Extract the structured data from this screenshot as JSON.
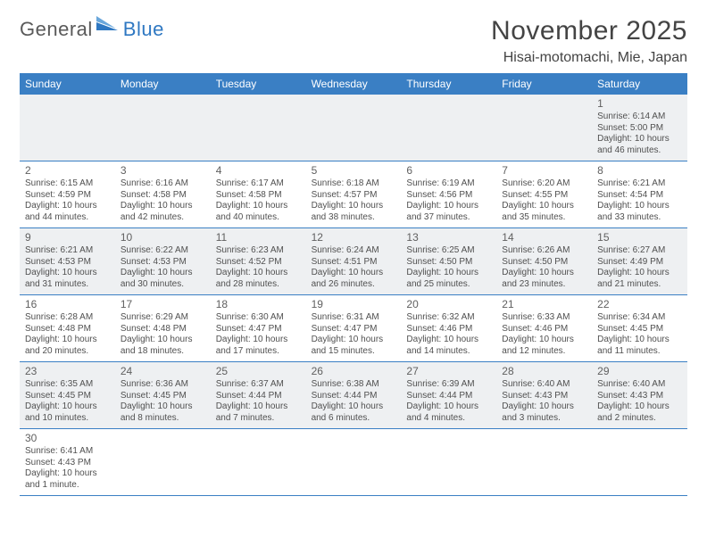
{
  "logo": {
    "text1": "General",
    "text2": "Blue"
  },
  "title": "November 2025",
  "location": "Hisai-motomachi, Mie, Japan",
  "colors": {
    "header_bg": "#3a7fc4",
    "alt_row_bg": "#eef0f2",
    "border": "#3a7fc4",
    "logo_gray": "#5a5a5a",
    "logo_blue": "#2f78c2"
  },
  "weekdays": [
    "Sunday",
    "Monday",
    "Tuesday",
    "Wednesday",
    "Thursday",
    "Friday",
    "Saturday"
  ],
  "weeks": [
    {
      "alt": true,
      "days": [
        null,
        null,
        null,
        null,
        null,
        null,
        {
          "n": "1",
          "sr": "Sunrise: 6:14 AM",
          "ss": "Sunset: 5:00 PM",
          "d1": "Daylight: 10 hours",
          "d2": "and 46 minutes."
        }
      ]
    },
    {
      "alt": false,
      "days": [
        {
          "n": "2",
          "sr": "Sunrise: 6:15 AM",
          "ss": "Sunset: 4:59 PM",
          "d1": "Daylight: 10 hours",
          "d2": "and 44 minutes."
        },
        {
          "n": "3",
          "sr": "Sunrise: 6:16 AM",
          "ss": "Sunset: 4:58 PM",
          "d1": "Daylight: 10 hours",
          "d2": "and 42 minutes."
        },
        {
          "n": "4",
          "sr": "Sunrise: 6:17 AM",
          "ss": "Sunset: 4:58 PM",
          "d1": "Daylight: 10 hours",
          "d2": "and 40 minutes."
        },
        {
          "n": "5",
          "sr": "Sunrise: 6:18 AM",
          "ss": "Sunset: 4:57 PM",
          "d1": "Daylight: 10 hours",
          "d2": "and 38 minutes."
        },
        {
          "n": "6",
          "sr": "Sunrise: 6:19 AM",
          "ss": "Sunset: 4:56 PM",
          "d1": "Daylight: 10 hours",
          "d2": "and 37 minutes."
        },
        {
          "n": "7",
          "sr": "Sunrise: 6:20 AM",
          "ss": "Sunset: 4:55 PM",
          "d1": "Daylight: 10 hours",
          "d2": "and 35 minutes."
        },
        {
          "n": "8",
          "sr": "Sunrise: 6:21 AM",
          "ss": "Sunset: 4:54 PM",
          "d1": "Daylight: 10 hours",
          "d2": "and 33 minutes."
        }
      ]
    },
    {
      "alt": true,
      "days": [
        {
          "n": "9",
          "sr": "Sunrise: 6:21 AM",
          "ss": "Sunset: 4:53 PM",
          "d1": "Daylight: 10 hours",
          "d2": "and 31 minutes."
        },
        {
          "n": "10",
          "sr": "Sunrise: 6:22 AM",
          "ss": "Sunset: 4:53 PM",
          "d1": "Daylight: 10 hours",
          "d2": "and 30 minutes."
        },
        {
          "n": "11",
          "sr": "Sunrise: 6:23 AM",
          "ss": "Sunset: 4:52 PM",
          "d1": "Daylight: 10 hours",
          "d2": "and 28 minutes."
        },
        {
          "n": "12",
          "sr": "Sunrise: 6:24 AM",
          "ss": "Sunset: 4:51 PM",
          "d1": "Daylight: 10 hours",
          "d2": "and 26 minutes."
        },
        {
          "n": "13",
          "sr": "Sunrise: 6:25 AM",
          "ss": "Sunset: 4:50 PM",
          "d1": "Daylight: 10 hours",
          "d2": "and 25 minutes."
        },
        {
          "n": "14",
          "sr": "Sunrise: 6:26 AM",
          "ss": "Sunset: 4:50 PM",
          "d1": "Daylight: 10 hours",
          "d2": "and 23 minutes."
        },
        {
          "n": "15",
          "sr": "Sunrise: 6:27 AM",
          "ss": "Sunset: 4:49 PM",
          "d1": "Daylight: 10 hours",
          "d2": "and 21 minutes."
        }
      ]
    },
    {
      "alt": false,
      "days": [
        {
          "n": "16",
          "sr": "Sunrise: 6:28 AM",
          "ss": "Sunset: 4:48 PM",
          "d1": "Daylight: 10 hours",
          "d2": "and 20 minutes."
        },
        {
          "n": "17",
          "sr": "Sunrise: 6:29 AM",
          "ss": "Sunset: 4:48 PM",
          "d1": "Daylight: 10 hours",
          "d2": "and 18 minutes."
        },
        {
          "n": "18",
          "sr": "Sunrise: 6:30 AM",
          "ss": "Sunset: 4:47 PM",
          "d1": "Daylight: 10 hours",
          "d2": "and 17 minutes."
        },
        {
          "n": "19",
          "sr": "Sunrise: 6:31 AM",
          "ss": "Sunset: 4:47 PM",
          "d1": "Daylight: 10 hours",
          "d2": "and 15 minutes."
        },
        {
          "n": "20",
          "sr": "Sunrise: 6:32 AM",
          "ss": "Sunset: 4:46 PM",
          "d1": "Daylight: 10 hours",
          "d2": "and 14 minutes."
        },
        {
          "n": "21",
          "sr": "Sunrise: 6:33 AM",
          "ss": "Sunset: 4:46 PM",
          "d1": "Daylight: 10 hours",
          "d2": "and 12 minutes."
        },
        {
          "n": "22",
          "sr": "Sunrise: 6:34 AM",
          "ss": "Sunset: 4:45 PM",
          "d1": "Daylight: 10 hours",
          "d2": "and 11 minutes."
        }
      ]
    },
    {
      "alt": true,
      "days": [
        {
          "n": "23",
          "sr": "Sunrise: 6:35 AM",
          "ss": "Sunset: 4:45 PM",
          "d1": "Daylight: 10 hours",
          "d2": "and 10 minutes."
        },
        {
          "n": "24",
          "sr": "Sunrise: 6:36 AM",
          "ss": "Sunset: 4:45 PM",
          "d1": "Daylight: 10 hours",
          "d2": "and 8 minutes."
        },
        {
          "n": "25",
          "sr": "Sunrise: 6:37 AM",
          "ss": "Sunset: 4:44 PM",
          "d1": "Daylight: 10 hours",
          "d2": "and 7 minutes."
        },
        {
          "n": "26",
          "sr": "Sunrise: 6:38 AM",
          "ss": "Sunset: 4:44 PM",
          "d1": "Daylight: 10 hours",
          "d2": "and 6 minutes."
        },
        {
          "n": "27",
          "sr": "Sunrise: 6:39 AM",
          "ss": "Sunset: 4:44 PM",
          "d1": "Daylight: 10 hours",
          "d2": "and 4 minutes."
        },
        {
          "n": "28",
          "sr": "Sunrise: 6:40 AM",
          "ss": "Sunset: 4:43 PM",
          "d1": "Daylight: 10 hours",
          "d2": "and 3 minutes."
        },
        {
          "n": "29",
          "sr": "Sunrise: 6:40 AM",
          "ss": "Sunset: 4:43 PM",
          "d1": "Daylight: 10 hours",
          "d2": "and 2 minutes."
        }
      ]
    },
    {
      "alt": false,
      "days": [
        {
          "n": "30",
          "sr": "Sunrise: 6:41 AM",
          "ss": "Sunset: 4:43 PM",
          "d1": "Daylight: 10 hours",
          "d2": "and 1 minute."
        },
        null,
        null,
        null,
        null,
        null,
        null
      ]
    }
  ]
}
